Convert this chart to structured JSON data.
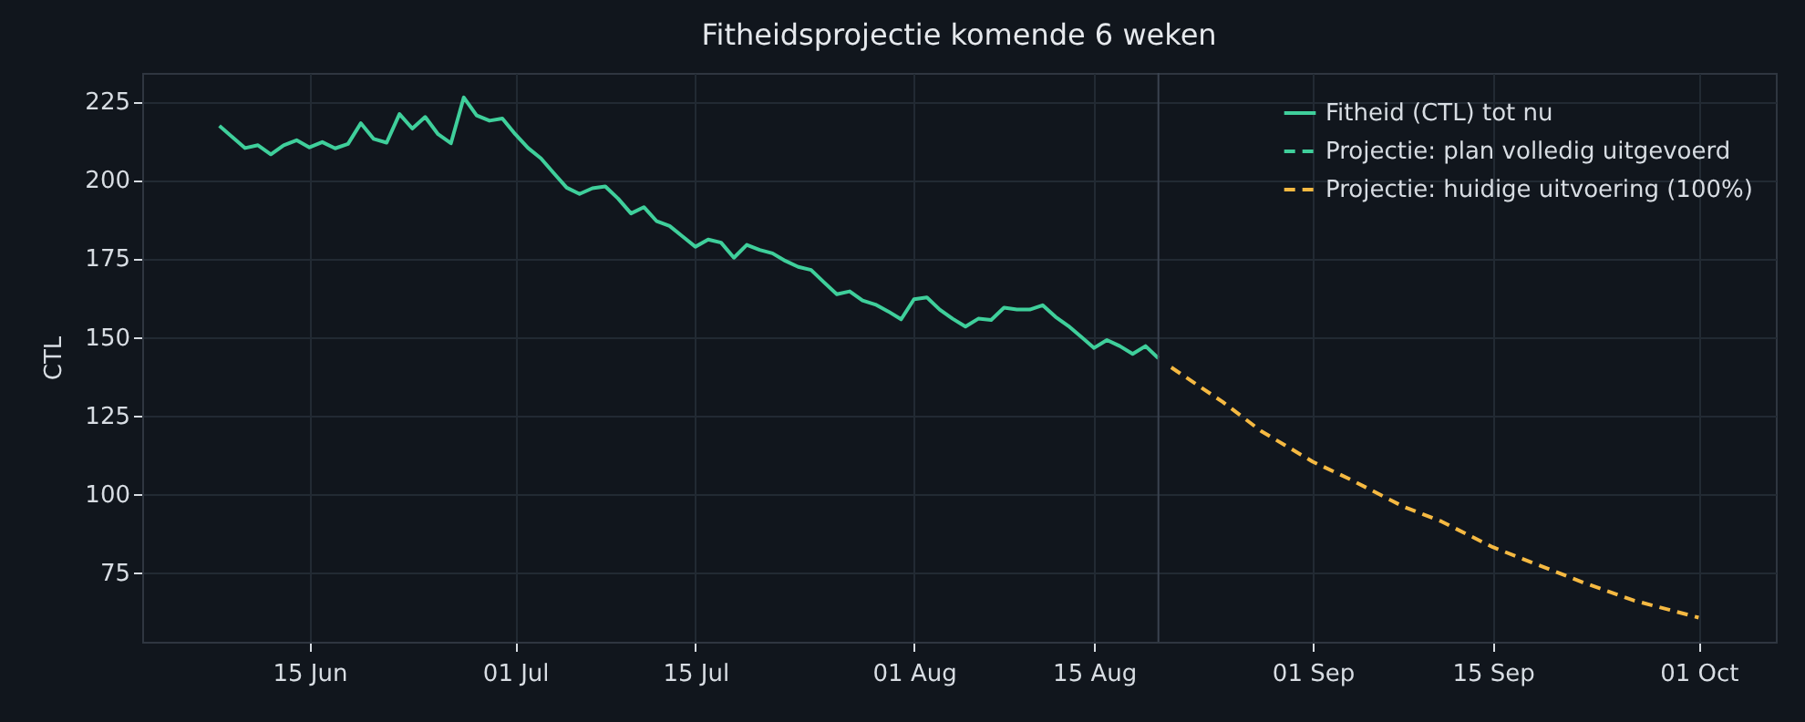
{
  "chart_data": {
    "type": "line",
    "title": "Fitheidsprojectie komende 6 weken",
    "ylabel": "CTL",
    "xlim": [
      "--06-02",
      "--10-07"
    ],
    "xticks": [
      {
        "value": "--06-15",
        "label": "15 Jun"
      },
      {
        "value": "--07-01",
        "label": "01 Jul"
      },
      {
        "value": "--07-15",
        "label": "15 Jul"
      },
      {
        "value": "--08-01",
        "label": "01 Aug"
      },
      {
        "value": "--08-15",
        "label": "15 Aug"
      },
      {
        "value": "--09-01",
        "label": "01 Sep"
      },
      {
        "value": "--09-15",
        "label": "15 Sep"
      },
      {
        "value": "--10-01",
        "label": "01 Oct"
      }
    ],
    "ylim": [
      53,
      234
    ],
    "yticks": [
      75,
      100,
      125,
      150,
      175,
      200,
      225
    ],
    "grid": true,
    "legend": "top right",
    "ref_lines": [
      {
        "axis": "x",
        "value": "--08-20",
        "color": "#3a4350"
      }
    ],
    "series": [
      {
        "name": "Fitheid (CTL) tot nu",
        "color": "#3fcf9b",
        "line_style": "solid",
        "x": [
          "--06-08",
          "--06-09",
          "--06-10",
          "--06-11",
          "--06-12",
          "--06-13",
          "--06-14",
          "--06-15",
          "--06-16",
          "--06-17",
          "--06-18",
          "--06-19",
          "--06-20",
          "--06-21",
          "--06-22",
          "--06-23",
          "--06-24",
          "--06-25",
          "--06-26",
          "--06-27",
          "--06-28",
          "--06-29",
          "--06-30",
          "--07-01",
          "--07-02",
          "--07-03",
          "--07-04",
          "--07-05",
          "--07-06",
          "--07-07",
          "--07-08",
          "--07-09",
          "--07-10",
          "--07-11",
          "--07-12",
          "--07-13",
          "--07-14",
          "--07-15",
          "--07-16",
          "--07-17",
          "--07-18",
          "--07-19",
          "--07-20",
          "--07-21",
          "--07-22",
          "--07-23",
          "--07-24",
          "--07-25",
          "--07-26",
          "--07-27",
          "--07-28",
          "--07-29",
          "--07-30",
          "--07-31",
          "--08-01",
          "--08-02",
          "--08-03",
          "--08-04",
          "--08-05",
          "--08-06",
          "--08-07",
          "--08-08",
          "--08-09",
          "--08-10",
          "--08-11",
          "--08-12",
          "--08-13",
          "--08-14",
          "--08-15",
          "--08-16",
          "--08-17",
          "--08-18",
          "--08-19",
          "--08-20"
        ],
        "values": [
          217.2,
          213.6,
          210.1,
          211,
          208.1,
          211,
          212.6,
          210.3,
          212,
          210,
          211.4,
          218,
          213,
          211.8,
          220.9,
          216.3,
          220,
          214.5,
          211.6,
          226.2,
          220.5,
          218.8,
          219.5,
          214.5,
          210.1,
          206.8,
          202.1,
          197.5,
          195.5,
          197.3,
          197.9,
          194,
          189.3,
          191.3,
          186.8,
          185.3,
          182,
          178.7,
          181,
          180,
          175.2,
          179.3,
          177.7,
          176.6,
          174.2,
          172.3,
          171.3,
          167.4,
          163.6,
          164.5,
          161.6,
          160.3,
          158.1,
          155.6,
          162,
          162.6,
          158.7,
          155.8,
          153.3,
          155.8,
          155.4,
          159.3,
          158.7,
          158.7,
          160.1,
          156.4,
          153.5,
          150,
          146.5,
          149,
          147.1,
          144.6,
          147.1,
          143.2
        ]
      },
      {
        "name": "Projectie: plan volledig uitgevoerd",
        "color": "#3fcf9b",
        "line_style": "dashed"
      },
      {
        "name": "Projectie: huidige uitvoering (100%)",
        "color": "#f5b942",
        "line_style": "dashed",
        "x": [
          "--08-21",
          "--08-25",
          "--08-28",
          "--09-01",
          "--09-04",
          "--09-08",
          "--09-11",
          "--09-15",
          "--09-18",
          "--09-22",
          "--09-26",
          "--10-01"
        ],
        "values": [
          140.3,
          129.3,
          120,
          110.3,
          104.5,
          96.1,
          91.3,
          83.1,
          78.3,
          71.9,
          66.1,
          60.7
        ]
      }
    ]
  }
}
